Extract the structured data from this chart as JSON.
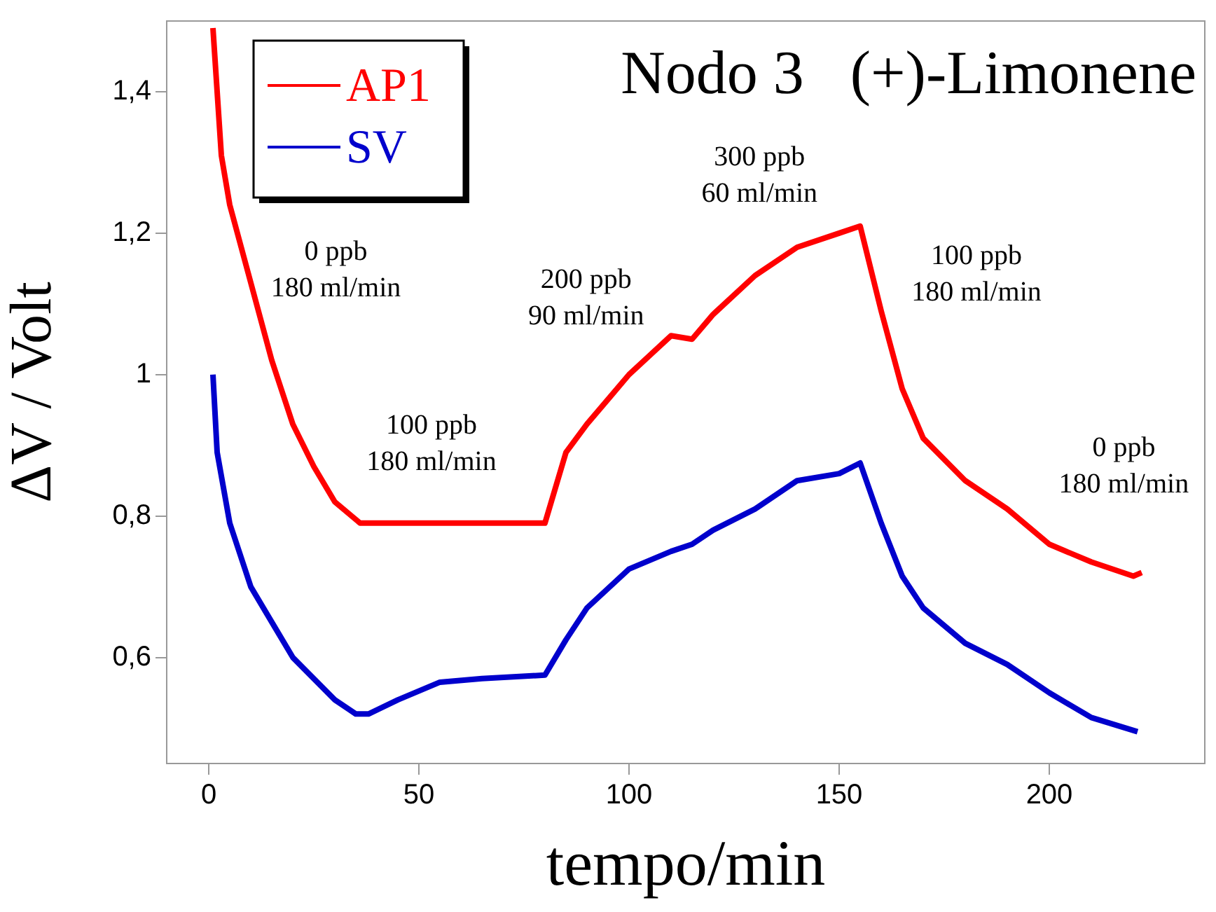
{
  "chart_data": {
    "type": "line",
    "title": "Nodo 3   (+)-Limonene",
    "xlabel": "tempo/min",
    "ylabel": "ΔV / Volt",
    "xlim": [
      -10,
      237
    ],
    "xticks": [
      0,
      50,
      100,
      150,
      200
    ],
    "ylim": [
      0.45,
      1.5
    ],
    "yticks": [
      {
        "value": 0.6,
        "label": "0,6"
      },
      {
        "value": 0.8,
        "label": "0,8"
      },
      1,
      {
        "value": 1.2,
        "label": "1,2"
      },
      {
        "value": 1.4,
        "label": "1,4"
      }
    ],
    "grid": false,
    "legend": "top left",
    "marker": "none",
    "line_style": "solid",
    "series": [
      {
        "name": "AP1",
        "color": "#ff0000",
        "x": [
          1,
          3,
          5,
          10,
          15,
          20,
          25,
          30,
          36,
          50,
          65,
          80,
          85,
          90,
          95,
          100,
          110,
          115,
          120,
          130,
          140,
          150,
          155,
          160,
          165,
          170,
          180,
          190,
          200,
          210,
          220,
          222
        ],
        "values": [
          1.49,
          1.31,
          1.24,
          1.13,
          1.02,
          0.93,
          0.87,
          0.82,
          0.79,
          0.79,
          0.79,
          0.79,
          0.89,
          0.93,
          0.965,
          1.0,
          1.055,
          1.05,
          1.085,
          1.14,
          1.18,
          1.2,
          1.21,
          1.09,
          0.98,
          0.91,
          0.85,
          0.81,
          0.76,
          0.735,
          0.715,
          0.72
        ]
      },
      {
        "name": "SV",
        "color": "#0000cc",
        "x": [
          1,
          2,
          5,
          10,
          15,
          20,
          25,
          30,
          35,
          38,
          45,
          55,
          65,
          80,
          85,
          90,
          100,
          110,
          115,
          120,
          130,
          140,
          150,
          155,
          160,
          165,
          170,
          180,
          190,
          200,
          210,
          221
        ],
        "values": [
          1.0,
          0.89,
          0.79,
          0.7,
          0.65,
          0.6,
          0.57,
          0.54,
          0.52,
          0.52,
          0.54,
          0.565,
          0.57,
          0.575,
          0.625,
          0.67,
          0.725,
          0.75,
          0.76,
          0.78,
          0.81,
          0.85,
          0.86,
          0.875,
          0.79,
          0.715,
          0.67,
          0.62,
          0.59,
          0.55,
          0.515,
          0.495
        ]
      }
    ],
    "annotations": [
      "0 ppb\n180 ml/min",
      "100 ppb\n180 ml/min",
      "200 ppb\n90 ml/min",
      "300 ppb\n60 ml/min",
      "100 ppb\n180 ml/min",
      "0 ppb\n180 ml/min"
    ]
  }
}
